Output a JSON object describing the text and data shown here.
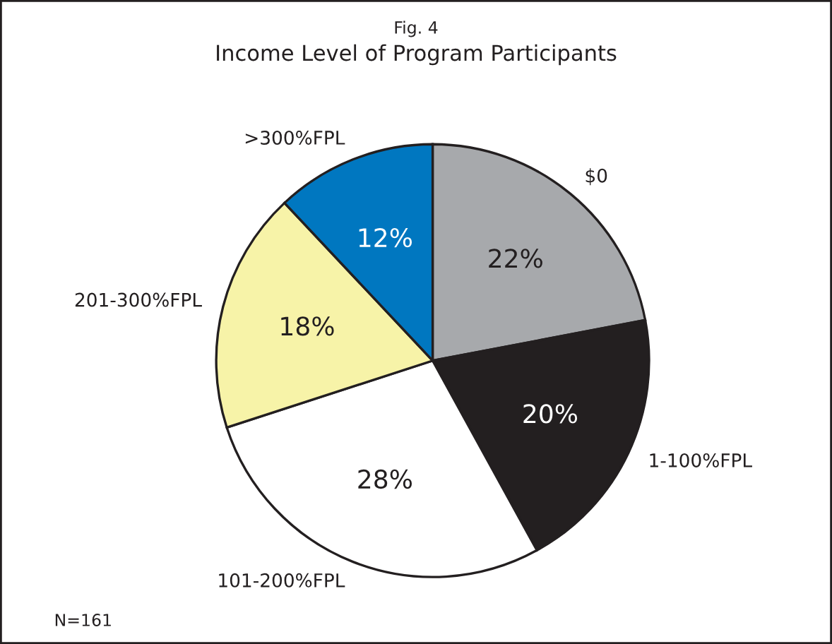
{
  "chart_data": {
    "type": "pie",
    "title": "Fig. 4",
    "subtitle": "Income Level of Program Participants",
    "categories": [
      "$0",
      "1-100%FPL",
      "101-200%FPL",
      "201-300%FPL",
      ">300%FPL"
    ],
    "values": [
      22,
      20,
      28,
      18,
      12
    ],
    "colors": [
      "#a7a9ac",
      "#231f20",
      "#ffffff",
      "#f7f3a8",
      "#0077c0"
    ],
    "value_labels": [
      "22%",
      "20%",
      "28%",
      "18%",
      "12%"
    ],
    "annotations": [
      "N=161"
    ]
  }
}
